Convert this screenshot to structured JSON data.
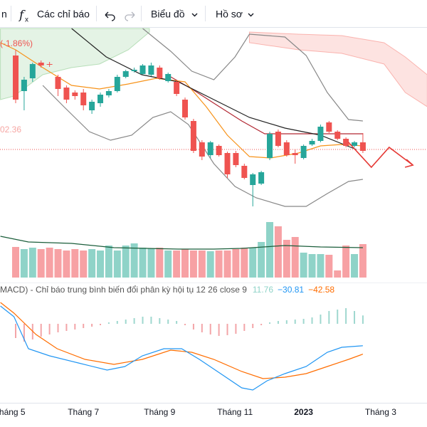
{
  "toolbar": {
    "cut_label": "n",
    "indicators": "Các chỉ báo",
    "chart_menu": "Biểu đồ",
    "profile_menu": "Hồ sơ"
  },
  "x_axis": {
    "xlim": [
      -1.85,
      48.57
    ],
    "ticks": [
      {
        "value": -0.4,
        "label": "háng 5"
      },
      {
        "value": 8,
        "label": "Tháng 7"
      },
      {
        "value": 17,
        "label": "Tháng 9"
      },
      {
        "value": 25.9,
        "label": "Tháng 11"
      },
      {
        "value": 34,
        "label": "2023"
      },
      {
        "value": 43.1,
        "label": "Tháng 3"
      }
    ],
    "bold_label": "2023"
  },
  "chart_data": [
    {
      "type": "candlestick",
      "change_label": "(-1.86%)",
      "price_label": "02.36",
      "ylim": [
        84,
        136
      ],
      "up_color": "#26a69a",
      "down_color": "#ef5350",
      "open": [
        128.4,
        118.4,
        122,
        126.4,
        126,
        122.4,
        119.4,
        118,
        118,
        113,
        115,
        117.2,
        118.4,
        122.4,
        124,
        123.2,
        123,
        125,
        121.2,
        121,
        116,
        110,
        104,
        100.4,
        103,
        101,
        101,
        97.4,
        92,
        92.4,
        99.6,
        107,
        104,
        101,
        99.6,
        103.4,
        104.4,
        109.6,
        107,
        105,
        103,
        104
      ],
      "high": [
        130,
        122.4,
        126.4,
        127,
        126.6,
        123,
        120,
        118.6,
        119,
        116,
        118,
        119,
        123,
        124.4,
        125,
        126,
        126.4,
        125.6,
        123.6,
        121.4,
        116.6,
        110.6,
        104.6,
        104.4,
        103.4,
        101.4,
        101.6,
        98,
        95.4,
        96,
        107,
        107.6,
        104.6,
        102,
        103.4,
        105,
        109,
        110,
        107.4,
        105.4,
        104.4,
        106.6
      ],
      "low": [
        115,
        113,
        121,
        125,
        125.2,
        117,
        115,
        116,
        113,
        112,
        114,
        116.6,
        118,
        122,
        123.6,
        123,
        122.6,
        121.6,
        120.8,
        117,
        110.4,
        101,
        99,
        99.6,
        100,
        94,
        97,
        93.6,
        86,
        92,
        99,
        102.6,
        100,
        98,
        99.2,
        103,
        104,
        106.6,
        104.6,
        102.6,
        102.6,
        101
      ],
      "close": [
        116,
        121.6,
        126,
        125.6,
        125.8,
        119,
        116,
        117,
        114.4,
        115.4,
        117.4,
        118.4,
        122.4,
        124,
        124.4,
        125.6,
        125.6,
        122,
        123.2,
        117.6,
        111,
        101.6,
        100,
        104,
        100.4,
        95,
        97.6,
        94,
        95,
        95.6,
        106.4,
        103,
        100.4,
        100.4,
        103,
        104.4,
        108.4,
        107,
        105,
        103,
        104,
        101.6
      ],
      "clouds": [
        {
          "color": "#4caf50",
          "x": [
            -1.8,
            -0.2,
            3.2,
            6.6,
            9.9,
            13.3,
            15.8
          ],
          "upper": [
            136,
            136,
            136,
            136,
            136,
            136,
            136
          ],
          "lower": [
            116,
            117,
            123,
            125,
            126,
            130,
            135
          ]
        },
        {
          "color": "#f44336",
          "x": [
            27.6,
            33.4,
            38.5,
            43.5,
            46,
            48.6
          ],
          "upper": [
            135,
            134.4,
            134,
            132,
            128,
            123
          ],
          "lower": [
            132,
            130,
            129,
            126,
            118,
            114
          ]
        }
      ],
      "lines": [
        {
          "color": "#888888",
          "x": [
            15,
            18.3,
            20.8,
            23.4,
            25.9,
            27.6,
            31.8,
            34.3,
            36.8,
            39.3,
            41
          ],
          "values": [
            136,
            129.6,
            124,
            121.6,
            128,
            134.4,
            133.6,
            128.4,
            118,
            110.4,
            110
          ]
        },
        {
          "color": "#888888",
          "x": [
            3.2,
            5.7,
            8.7,
            11.2,
            13.7,
            16.2,
            18.3,
            20.4,
            23.4,
            25.9,
            28.4,
            31.8,
            34.3,
            36.8,
            39.3,
            41
          ],
          "values": [
            120,
            114,
            107,
            104.6,
            106,
            111,
            112.6,
            109,
            98,
            91.6,
            88.4,
            86,
            86,
            89.6,
            93,
            93.6
          ]
        },
        {
          "color": "#b22833",
          "x": [
            18.3,
            20.8,
            23.4,
            26.7,
            29.4,
            41
          ],
          "values": [
            122.4,
            119,
            115,
            110,
            106.4,
            106.4
          ]
        },
        {
          "color": "#f7931a",
          "x": [
            -1.8,
            0,
            3.2,
            6.6,
            9.9,
            13.3,
            16.6,
            20,
            22.5,
            25,
            27.6,
            30.1,
            33.4,
            36,
            38.5,
            41
          ],
          "values": [
            132,
            130,
            125,
            120,
            119,
            120.4,
            122,
            121,
            114,
            106,
            100,
            99.6,
            101,
            103,
            103.4,
            103
          ]
        },
        {
          "color": "#222222",
          "x": [
            6.6,
            10.7,
            14.9,
            19.2,
            23.4,
            27.6,
            31.8,
            36,
            40.2
          ],
          "values": [
            136,
            128,
            123,
            121,
            116,
            111,
            108,
            106,
            102
          ]
        }
      ],
      "projection": {
        "color": "#e53935",
        "x": [
          39.3,
          42,
          44.1,
          46.9
        ],
        "values": [
          104,
          97,
          102.6,
          97.6
        ]
      },
      "last_price_line": {
        "value": 102,
        "color": "#ef5350"
      }
    },
    {
      "type": "volume",
      "ylim": [
        0,
        80
      ],
      "up_color": "#8fd3c8",
      "down_color": "#f7a1a4",
      "values": [
        43,
        40,
        42,
        40,
        42,
        40,
        38,
        40,
        38,
        40,
        38,
        45,
        38,
        45,
        48,
        42,
        41,
        42,
        38,
        38,
        40,
        38,
        38,
        37,
        38,
        38,
        40,
        42,
        42,
        50,
        78,
        72,
        53,
        57,
        35,
        33,
        33,
        32,
        10,
        45,
        33,
        47
      ],
      "ma": {
        "color": "#1b5e3b",
        "x": [
          -1.8,
          1.5,
          6.6,
          11.6,
          19.2,
          23.4,
          26.7,
          31.8,
          36,
          41
        ],
        "values": [
          58,
          50,
          48,
          42,
          40,
          40,
          41,
          45,
          43,
          42
        ]
      }
    },
    {
      "type": "macd",
      "title": "MACD) - Chỉ báo trung bình biến đổi phân kỳ hội tụ 12 26 close 9",
      "ylim": [
        -105,
        35
      ],
      "histogram": {
        "up_color": "#9fd8cf",
        "down_color": "#f3a5a8",
        "label": "11.76",
        "label_color": "#8fd3c8",
        "values": [
          -20,
          -25,
          -22,
          -18,
          -15,
          -12,
          -10,
          -8,
          -6,
          -4,
          -2,
          2,
          4,
          6,
          8,
          10,
          10,
          8,
          6,
          4,
          -2,
          -8,
          -12,
          -15,
          -17,
          -16,
          -14,
          -10,
          -6,
          -2,
          2,
          4,
          5,
          6,
          7,
          9,
          13,
          18,
          20,
          22,
          18,
          11.76
        ]
      },
      "macd": {
        "color": "#2196f3",
        "label": "−30.81",
        "x": [
          -1.8,
          -0.2,
          1.5,
          4,
          7.4,
          10.8,
          12.9,
          14.96,
          17.5,
          19.6,
          21.7,
          24.2,
          26.7,
          28,
          29.7,
          31.8,
          34.3,
          36.8,
          38.5,
          41
        ],
        "values": [
          25,
          10,
          -35,
          -45,
          -55,
          -65,
          -60,
          -45,
          -35,
          -35,
          -50,
          -70,
          -90,
          -93,
          -80,
          -70,
          -60,
          -40,
          -33,
          -30.81
        ]
      },
      "signal": {
        "color": "#ff6d00",
        "label": "−42.58",
        "x": [
          -1.8,
          -0.2,
          2.4,
          4.9,
          8.2,
          11.6,
          14.96,
          18.3,
          20.8,
          23.4,
          26.7,
          29.2,
          31.8,
          34.3,
          36.8,
          39.3,
          41
        ],
        "values": [
          30,
          15,
          -15,
          -35,
          -50,
          -57,
          -50,
          -37,
          -40,
          -50,
          -67,
          -77,
          -75,
          -70,
          -60,
          -50,
          -42.58
        ]
      }
    }
  ]
}
